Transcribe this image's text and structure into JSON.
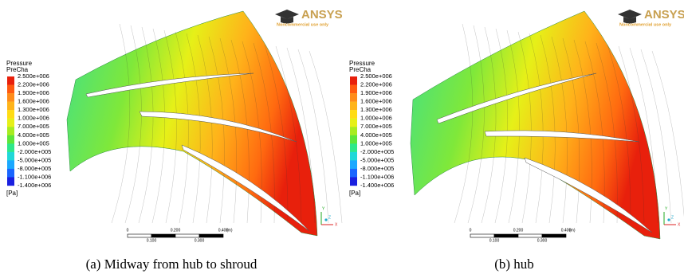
{
  "panels": [
    {
      "legend": {
        "title": "Pressure",
        "variable": "PreCha",
        "labels": [
          "2.500e+006",
          "2.200e+006",
          "1.900e+006",
          "1.600e+006",
          "1.300e+006",
          "1.000e+006",
          "7.000e+005",
          "4.000e+005",
          "1.000e+005",
          "-2.000e+005",
          "-5.000e+005",
          "-8.000e+005",
          "-1.100e+006",
          "-1.400e+006"
        ],
        "unit": "[Pa]"
      },
      "logo": {
        "name": "ANSYS",
        "note": "Noncommercial use only"
      },
      "scale": {
        "top": [
          "0",
          "0.200",
          "0.400"
        ],
        "bottom": [
          "0.100",
          "0.300"
        ],
        "unit": "(m)"
      },
      "triad": [
        "Y",
        "Z",
        "X"
      ],
      "caption": "(a) Midway from hub to shroud"
    },
    {
      "legend": {
        "title": "Pressure",
        "variable": "PreCha",
        "labels": [
          "2.500e+006",
          "2.200e+006",
          "1.900e+006",
          "1.600e+006",
          "1.300e+006",
          "1.000e+006",
          "7.000e+005",
          "4.000e+005",
          "1.000e+005",
          "-2.000e+005",
          "-5.000e+005",
          "-8.000e+005",
          "-1.100e+006",
          "-1.400e+006"
        ],
        "unit": "[Pa]"
      },
      "logo": {
        "name": "ANSYS",
        "note": "Noncommercial use only"
      },
      "scale": {
        "top": [
          "0",
          "0.200",
          "0.400"
        ],
        "bottom": [
          "0.100",
          "0.300"
        ],
        "unit": "(m)"
      },
      "triad": [
        "Y",
        "Z",
        "X"
      ],
      "caption": "(b) hub"
    }
  ]
}
